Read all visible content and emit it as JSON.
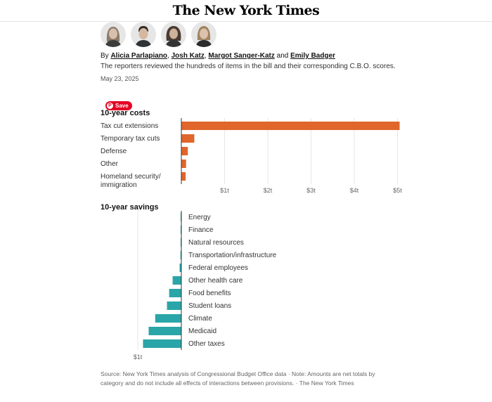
{
  "masthead": {
    "logo_text": "The New York Times"
  },
  "byline": {
    "prefix": "By",
    "authors": [
      "Alicia Parlapiano",
      "Josh Katz",
      "Margot Sanger-Katz",
      "Emily Badger"
    ],
    "sep1": ", ",
    "sep2": ", ",
    "sep3": " and "
  },
  "dek": "The reporters reviewed the hundreds of items in the bill and their corresponding C.B.O. scores.",
  "date": "May 23, 2025",
  "save_button": {
    "label": "Save",
    "icon": "pinterest-icon"
  },
  "chart_data": [
    {
      "type": "bar",
      "orientation": "horizontal",
      "title": "10-year costs",
      "categories": [
        "Tax cut extensions",
        "Temporary tax cuts",
        "Defense",
        "Other",
        "Homeland security/\nimmigration"
      ],
      "values": [
        5.05,
        0.3,
        0.15,
        0.11,
        0.1
      ],
      "units": "trillion dollars",
      "xlim": [
        0,
        5
      ],
      "tick_values": [
        1,
        2,
        3,
        4,
        5
      ],
      "tick_labels": [
        "$1t",
        "$2t",
        "$3t",
        "$4t",
        "$5t"
      ],
      "grid": true,
      "color": "#e0662b"
    },
    {
      "type": "bar",
      "orientation": "horizontal",
      "title": "10-year savings",
      "categories": [
        "Energy",
        "Finance",
        "Natural resources",
        "Transportation/infrastructure",
        "Federal employees",
        "Other health care",
        "Food benefits",
        "Student loans",
        "Climate",
        "Medicaid",
        "Other taxes"
      ],
      "values": [
        -0.002,
        -0.005,
        -0.01,
        -0.02,
        -0.04,
        -0.2,
        -0.28,
        -0.33,
        -0.6,
        -0.75,
        -0.88
      ],
      "units": "trillion dollars",
      "xlim": [
        -1,
        0
      ],
      "tick_values": [
        -1
      ],
      "tick_labels": [
        "$1t"
      ],
      "grid": true,
      "color": "#2aa5a8"
    }
  ],
  "source": {
    "text": "Source: New York Times analysis of Congressional Budget Office data",
    "note": "Note: Amounts are net totals by category and do not include all effects of interactions between provisions.",
    "credit": "The New York Times",
    "dot": "·"
  }
}
